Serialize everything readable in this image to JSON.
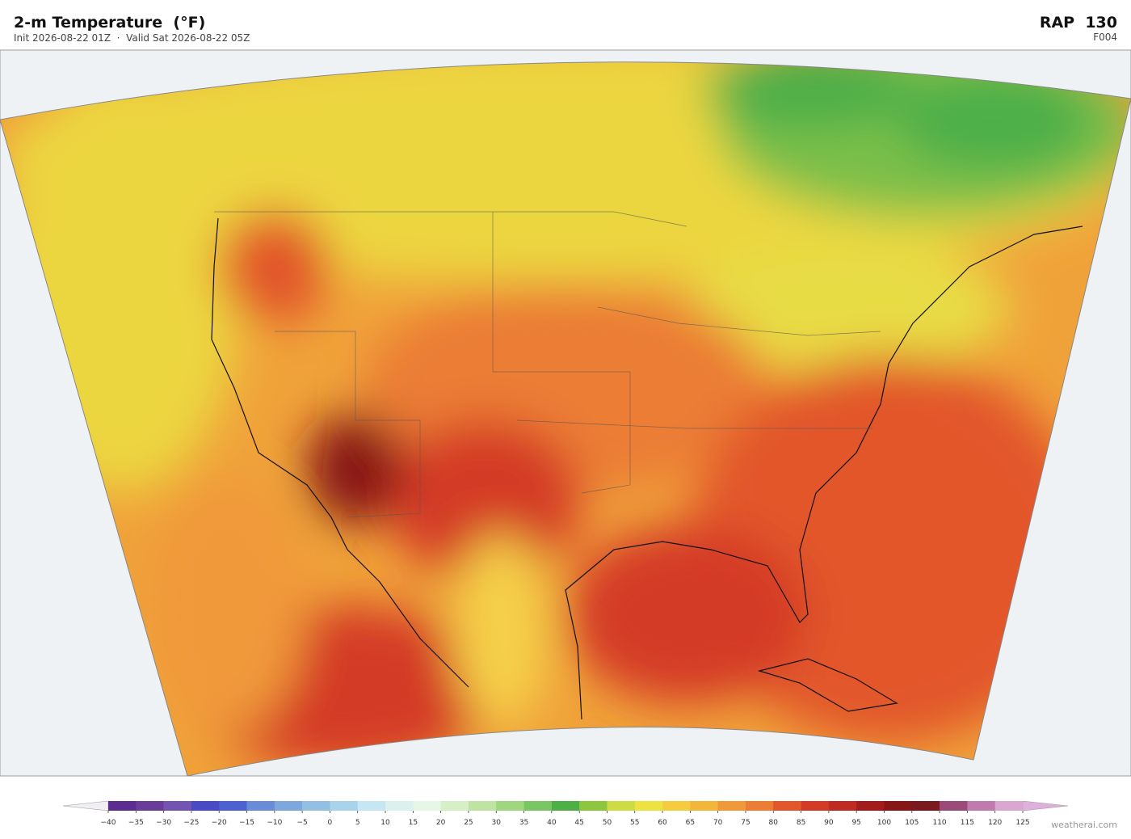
{
  "header": {
    "title": "2-m Temperature  (°F)",
    "subtitle": "Init 2026-08-22 01Z  ·  Valid Sat 2026-08-22 05Z",
    "model": "RAP  130",
    "forecast": "F004"
  },
  "colorbar": {
    "lim": [
      -40,
      125
    ],
    "ticks": [
      {
        "value": -40,
        "label": "−40"
      },
      {
        "value": -35,
        "label": "−35"
      },
      {
        "value": -30,
        "label": "−30"
      },
      {
        "value": -25,
        "label": "−25"
      },
      {
        "value": -20,
        "label": "−20"
      },
      {
        "value": -15,
        "label": "−15"
      },
      {
        "value": -10,
        "label": "−10"
      },
      {
        "value": -5,
        "label": "−5"
      },
      0,
      5,
      10,
      15,
      20,
      25,
      30,
      35,
      40,
      45,
      50,
      55,
      60,
      65,
      70,
      75,
      80,
      85,
      90,
      95,
      100,
      105,
      110,
      115,
      120,
      125
    ],
    "colors": [
      "#5c2d91",
      "#6a3d9a",
      "#7155b0",
      "#4a4ac4",
      "#4d62d0",
      "#6a8bd6",
      "#7ea7dc",
      "#93bfe2",
      "#a9d3ea",
      "#c6e6f2",
      "#dcf0f0",
      "#e8f6e8",
      "#d6efc6",
      "#bfe3a0",
      "#9fd67f",
      "#78c764",
      "#4caf48",
      "#8fc640",
      "#cddb45",
      "#ece240",
      "#f5cc3e",
      "#f4b63a",
      "#f0993a",
      "#eb7d35",
      "#e2572b",
      "#d43b26",
      "#bf2a22",
      "#a31c1c",
      "#871616",
      "#7a1a1e",
      "#9c4a7a",
      "#c07aae",
      "#d8a8d0"
    ],
    "under_color": "#f2eef6",
    "over_color": "#e0b0dc"
  },
  "footer": {
    "credit": "weatherai.com"
  }
}
